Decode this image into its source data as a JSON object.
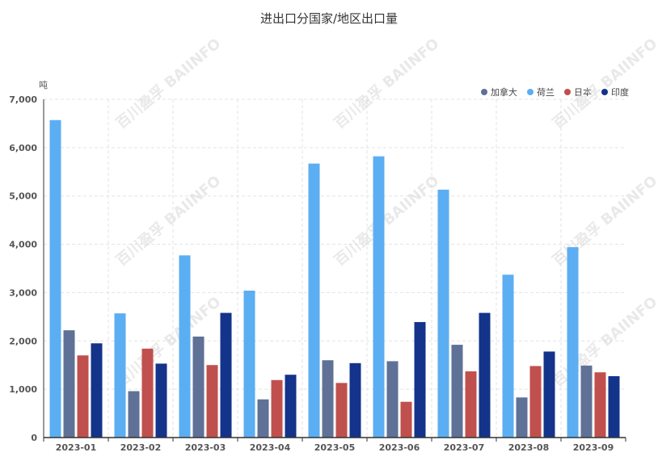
{
  "chart_data": {
    "type": "bar",
    "title": "进出口分国家/地区出口量",
    "ylabel": "吨",
    "categories": [
      "2023-01",
      "2023-02",
      "2023-03",
      "2023-04",
      "2023-05",
      "2023-06",
      "2023-07",
      "2023-08",
      "2023-09"
    ],
    "series": [
      {
        "name": "荷兰",
        "color": "#5baef2",
        "values": [
          6570,
          2570,
          3770,
          3040,
          5670,
          5820,
          5130,
          3370,
          3940
        ]
      },
      {
        "name": "加拿大",
        "color": "#5f7196",
        "values": [
          2220,
          960,
          2090,
          790,
          1600,
          1580,
          1920,
          830,
          1490
        ]
      },
      {
        "name": "日本",
        "color": "#c0504d",
        "values": [
          1700,
          1840,
          1500,
          1190,
          1130,
          740,
          1370,
          1480,
          1350
        ]
      },
      {
        "name": "印度",
        "color": "#14338a",
        "values": [
          1950,
          1530,
          2580,
          1300,
          1540,
          2390,
          2580,
          1780,
          1270
        ]
      }
    ],
    "legend_order": [
      "加拿大",
      "荷兰",
      "日本",
      "印度"
    ],
    "yticks": [
      "0",
      "1,000",
      "2,000",
      "3,000",
      "4,000",
      "5,000",
      "6,000",
      "7,000"
    ],
    "ylim": [
      0,
      7000
    ],
    "grid": true,
    "legend_position": "top-right",
    "watermark": "百川盈孚 BAIINFO"
  }
}
